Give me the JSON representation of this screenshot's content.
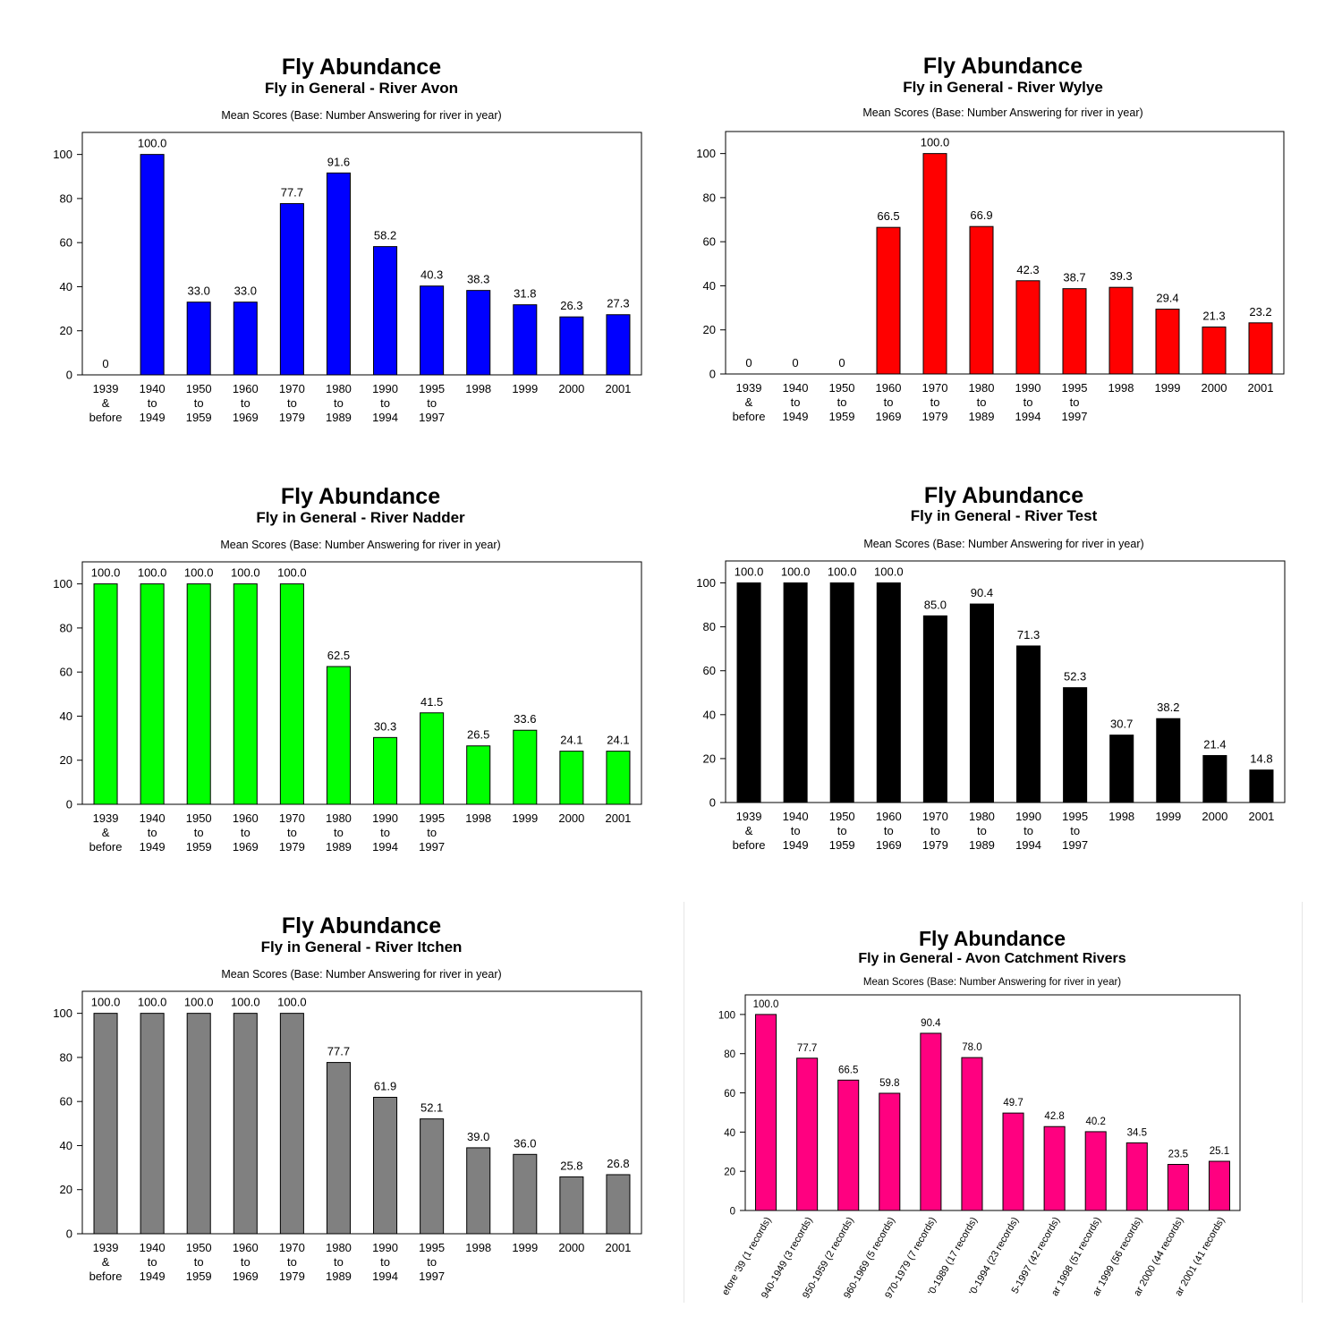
{
  "chart_data": [
    {
      "type": "bar",
      "title": "Fly Abundance",
      "subtitle": "Fly in General -  River Avon",
      "note": "Mean Scores (Base: Number Answering for river in year)",
      "color": "#0000ff",
      "categories": [
        [
          "1939",
          "&",
          "before"
        ],
        [
          "1940",
          "to",
          "1949"
        ],
        [
          "1950",
          "to",
          "1959"
        ],
        [
          "1960",
          "to",
          "1969"
        ],
        [
          "1970",
          "to",
          "1979"
        ],
        [
          "1980",
          "to",
          "1989"
        ],
        [
          "1990",
          "to",
          "1994"
        ],
        [
          "1995",
          "to",
          "1997"
        ],
        [
          "1998"
        ],
        [
          "1999"
        ],
        [
          "2000"
        ],
        [
          "2001"
        ]
      ],
      "values": [
        0,
        100.0,
        33.0,
        33.0,
        77.7,
        91.6,
        58.2,
        40.3,
        38.3,
        31.8,
        26.3,
        27.3
      ],
      "labels": [
        "0",
        "100.0",
        "33.0",
        "33.0",
        "77.7",
        "91.6",
        "58.2",
        "40.3",
        "38.3",
        "31.8",
        "26.3",
        "27.3"
      ],
      "ylim": [
        0,
        110
      ],
      "yticks": [
        0,
        20,
        40,
        60,
        80,
        100
      ]
    },
    {
      "type": "bar",
      "title": "Fly Abundance",
      "subtitle": "Fly in General -  River Wylye",
      "note": "Mean Scores (Base: Number Answering for river in year)",
      "color": "#ff0000",
      "categories": [
        [
          "1939",
          "&",
          "before"
        ],
        [
          "1940",
          "to",
          "1949"
        ],
        [
          "1950",
          "to",
          "1959"
        ],
        [
          "1960",
          "to",
          "1969"
        ],
        [
          "1970",
          "to",
          "1979"
        ],
        [
          "1980",
          "to",
          "1989"
        ],
        [
          "1990",
          "to",
          "1994"
        ],
        [
          "1995",
          "to",
          "1997"
        ],
        [
          "1998"
        ],
        [
          "1999"
        ],
        [
          "2000"
        ],
        [
          "2001"
        ]
      ],
      "values": [
        0,
        0,
        0,
        66.5,
        100.0,
        66.9,
        42.3,
        38.7,
        39.3,
        29.4,
        21.3,
        23.2
      ],
      "labels": [
        "0",
        "0",
        "0",
        "66.5",
        "100.0",
        "66.9",
        "42.3",
        "38.7",
        "39.3",
        "29.4",
        "21.3",
        "23.2"
      ],
      "ylim": [
        0,
        110
      ],
      "yticks": [
        0,
        20,
        40,
        60,
        80,
        100
      ]
    },
    {
      "type": "bar",
      "title": "Fly Abundance",
      "subtitle": "Fly in General -  River Nadder",
      "note": "Mean Scores (Base: Number Answering for river in year)",
      "color": "#00ff00",
      "categories": [
        [
          "1939",
          "&",
          "before"
        ],
        [
          "1940",
          "to",
          "1949"
        ],
        [
          "1950",
          "to",
          "1959"
        ],
        [
          "1960",
          "to",
          "1969"
        ],
        [
          "1970",
          "to",
          "1979"
        ],
        [
          "1980",
          "to",
          "1989"
        ],
        [
          "1990",
          "to",
          "1994"
        ],
        [
          "1995",
          "to",
          "1997"
        ],
        [
          "1998"
        ],
        [
          "1999"
        ],
        [
          "2000"
        ],
        [
          "2001"
        ]
      ],
      "values": [
        100.0,
        100.0,
        100.0,
        100.0,
        100.0,
        62.5,
        30.3,
        41.5,
        26.5,
        33.6,
        24.1,
        24.1
      ],
      "labels": [
        "100.0",
        "100.0",
        "100.0",
        "100.0",
        "100.0",
        "62.5",
        "30.3",
        "41.5",
        "26.5",
        "33.6",
        "24.1",
        "24.1"
      ],
      "ylim": [
        0,
        110
      ],
      "yticks": [
        0,
        20,
        40,
        60,
        80,
        100
      ]
    },
    {
      "type": "bar",
      "title": "Fly Abundance",
      "subtitle": "Fly in General -  River Test",
      "note": "Mean Scores (Base: Number Answering for river in year)",
      "color": "#000000",
      "categories": [
        [
          "1939",
          "&",
          "before"
        ],
        [
          "1940",
          "to",
          "1949"
        ],
        [
          "1950",
          "to",
          "1959"
        ],
        [
          "1960",
          "to",
          "1969"
        ],
        [
          "1970",
          "to",
          "1979"
        ],
        [
          "1980",
          "to",
          "1989"
        ],
        [
          "1990",
          "to",
          "1994"
        ],
        [
          "1995",
          "to",
          "1997"
        ],
        [
          "1998"
        ],
        [
          "1999"
        ],
        [
          "2000"
        ],
        [
          "2001"
        ]
      ],
      "values": [
        100.0,
        100.0,
        100.0,
        100.0,
        85.0,
        90.4,
        71.3,
        52.3,
        30.7,
        38.2,
        21.4,
        14.8
      ],
      "labels": [
        "100.0",
        "100.0",
        "100.0",
        "100.0",
        "85.0",
        "90.4",
        "71.3",
        "52.3",
        "30.7",
        "38.2",
        "21.4",
        "14.8"
      ],
      "ylim": [
        0,
        110
      ],
      "yticks": [
        0,
        20,
        40,
        60,
        80,
        100
      ]
    },
    {
      "type": "bar",
      "title": "Fly Abundance",
      "subtitle": "Fly in General -  River Itchen",
      "note": "Mean Scores (Base: Number Answering for river in year)",
      "color": "#808080",
      "categories": [
        [
          "1939",
          "&",
          "before"
        ],
        [
          "1940",
          "to",
          "1949"
        ],
        [
          "1950",
          "to",
          "1959"
        ],
        [
          "1960",
          "to",
          "1969"
        ],
        [
          "1970",
          "to",
          "1979"
        ],
        [
          "1980",
          "to",
          "1989"
        ],
        [
          "1990",
          "to",
          "1994"
        ],
        [
          "1995",
          "to",
          "1997"
        ],
        [
          "1998"
        ],
        [
          "1999"
        ],
        [
          "2000"
        ],
        [
          "2001"
        ]
      ],
      "values": [
        100.0,
        100.0,
        100.0,
        100.0,
        100.0,
        77.7,
        61.9,
        52.1,
        39.0,
        36.0,
        25.8,
        26.8
      ],
      "labels": [
        "100.0",
        "100.0",
        "100.0",
        "100.0",
        "100.0",
        "77.7",
        "61.9",
        "52.1",
        "39.0",
        "36.0",
        "25.8",
        "26.8"
      ],
      "ylim": [
        0,
        110
      ],
      "yticks": [
        0,
        20,
        40,
        60,
        80,
        100
      ]
    },
    {
      "type": "bar",
      "title": "Fly Abundance",
      "subtitle": "Fly in General -  Avon Catchment Rivers",
      "note": "Mean Scores (Base: Number Answering for river in year)",
      "color": "#ff0080",
      "categories": [
        [
          "efore '39  (1 records)"
        ],
        [
          "940-1949  (3 records)"
        ],
        [
          "950-1959  (2 records)"
        ],
        [
          "960-1969  (5 records)"
        ],
        [
          "970-1979  (7 records)"
        ],
        [
          "'0-1989  (17 records)"
        ],
        [
          "'0-1994  (23 records)"
        ],
        [
          "5-1997  (42 records)"
        ],
        [
          "ar 1998  (51 records)"
        ],
        [
          "ar 1999  (56 records)"
        ],
        [
          "ar 2000  (44 records)"
        ],
        [
          "ar 2001  (41 records)"
        ]
      ],
      "values": [
        100.0,
        77.7,
        66.5,
        59.8,
        90.4,
        78.0,
        49.7,
        42.8,
        40.2,
        34.5,
        23.5,
        25.1
      ],
      "labels": [
        "100.0",
        "77.7",
        "66.5",
        "59.8",
        "90.4",
        "78.0",
        "49.7",
        "42.8",
        "40.2",
        "34.5",
        "23.5",
        "25.1"
      ],
      "ylim": [
        0,
        110
      ],
      "yticks": [
        0,
        20,
        40,
        60,
        80,
        100
      ]
    }
  ]
}
